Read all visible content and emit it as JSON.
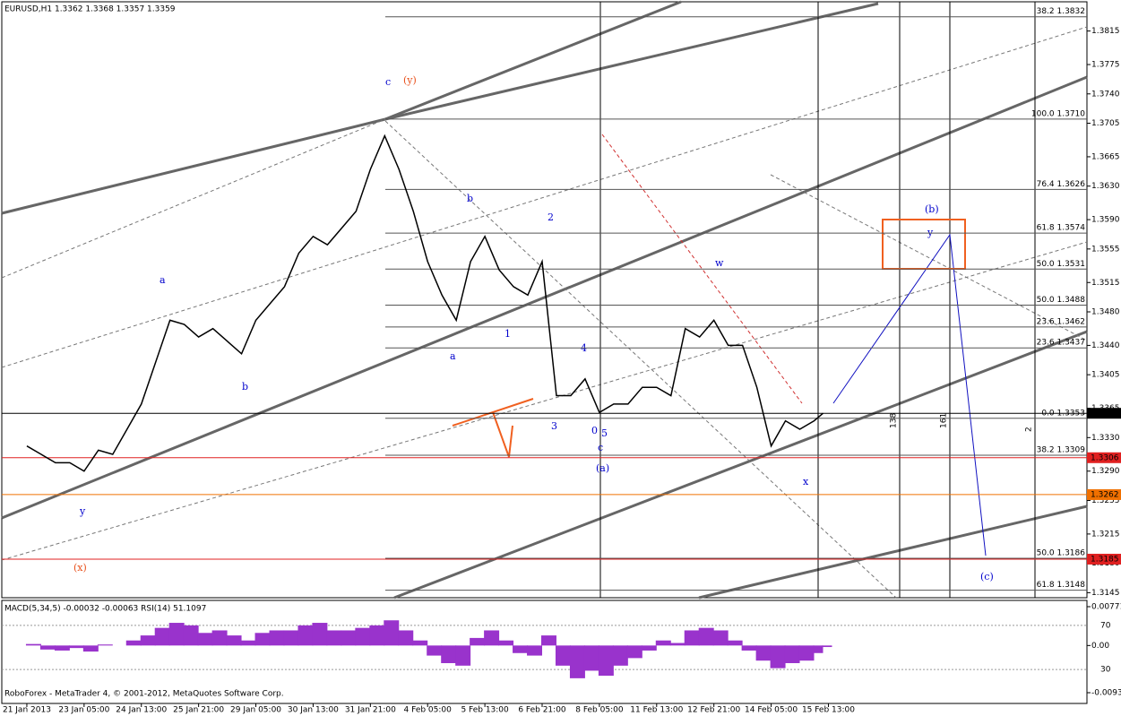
{
  "chart_data": {
    "type": "line",
    "title": "EURUSD,H1  1.3362 1.3368 1.3357 1.3359",
    "x": [
      0,
      8,
      16,
      24,
      32,
      40,
      48,
      56,
      64,
      72,
      80,
      88,
      96,
      104,
      112,
      120,
      128,
      136,
      144,
      152,
      160,
      168,
      176,
      184,
      192,
      200,
      208,
      216,
      224,
      232,
      240,
      248,
      256,
      264,
      272,
      280,
      288,
      296,
      304,
      312,
      320,
      328,
      336,
      344,
      352,
      360,
      368,
      376,
      384,
      392,
      400,
      408,
      416,
      424,
      432,
      440,
      445
    ],
    "series": [
      {
        "name": "EURUSD",
        "color": "#000000",
        "values": [
          1.332,
          1.331,
          1.33,
          1.33,
          1.329,
          1.3315,
          1.331,
          1.334,
          1.337,
          1.342,
          1.347,
          1.3465,
          1.345,
          1.346,
          1.3445,
          1.343,
          1.347,
          1.349,
          1.351,
          1.355,
          1.357,
          1.356,
          1.358,
          1.36,
          1.365,
          1.369,
          1.365,
          1.36,
          1.354,
          1.35,
          1.347,
          1.354,
          1.357,
          1.353,
          1.351,
          1.35,
          1.354,
          1.338,
          1.338,
          1.34,
          1.336,
          1.337,
          1.337,
          1.339,
          1.339,
          1.338,
          1.346,
          1.345,
          1.347,
          1.344,
          1.344,
          1.339,
          1.332,
          1.335,
          1.334,
          1.335,
          1.3359
        ]
      }
    ],
    "xlim": [
      -14,
      592.5
    ],
    "xticks": [
      {
        "value": 0,
        "label": "21 Jan 2013"
      },
      {
        "value": 32,
        "label": "23 Jan 05:00"
      },
      {
        "value": 64,
        "label": "24 Jan 13:00"
      },
      {
        "value": 96,
        "label": "25 Jan 21:00"
      },
      {
        "value": 128,
        "label": "29 Jan 05:00"
      },
      {
        "value": 160,
        "label": "30 Jan 13:00"
      },
      {
        "value": 192,
        "label": "31 Jan 21:00"
      },
      {
        "value": 224,
        "label": "4 Feb 05:00"
      },
      {
        "value": 256,
        "label": "5 Feb 13:00"
      },
      {
        "value": 288,
        "label": "6 Feb 21:00"
      },
      {
        "value": 320,
        "label": "8 Feb 05:00"
      },
      {
        "value": 352,
        "label": "11 Feb 13:00"
      },
      {
        "value": 384,
        "label": "12 Feb 21:00"
      },
      {
        "value": 416,
        "label": "14 Feb 05:00"
      },
      {
        "value": 448,
        "label": "15 Feb 13:00"
      }
    ],
    "ylim": [
      1.3139,
      1.3852
    ],
    "yticks": [
      1.3815,
      1.3775,
      {
        "value": 1.374,
        "label": "1.3740"
      },
      1.3705,
      1.3665,
      {
        "value": 1.363,
        "label": "1.3630"
      },
      {
        "value": 1.359,
        "label": "1.3590"
      },
      1.3555,
      1.3515,
      {
        "value": 1.348,
        "label": "1.3480"
      },
      {
        "value": 1.344,
        "label": "1.3440"
      },
      1.3405,
      1.3365,
      {
        "value": 1.333,
        "label": "1.3330"
      },
      {
        "value": 1.329,
        "label": "1.3290"
      },
      1.3255,
      1.3215,
      {
        "value": 1.318,
        "label": "1.3180"
      },
      1.3145
    ],
    "fib_levels": [
      {
        "label": "38.2 1.3832",
        "value": 1.3832
      },
      {
        "label": "100.0 1.3710",
        "value": 1.371
      },
      {
        "label": "76.4 1.3626",
        "value": 1.3626
      },
      {
        "label": "61.8 1.3574",
        "value": 1.3574
      },
      {
        "label": "50.0 1.3531",
        "value": 1.3531
      },
      {
        "label": "50.0 1.3488",
        "value": 1.3488
      },
      {
        "label": "23.6 1.3462",
        "value": 1.3462
      },
      {
        "label": "23.6 1.3437",
        "value": 1.3437
      },
      {
        "label": "0.0 1.3353",
        "value": 1.3353
      },
      {
        "label": "38.2 1.3309",
        "value": 1.3309
      },
      {
        "label": "50.0 1.3186",
        "value": 1.3186
      },
      {
        "label": "61.8 1.3148",
        "value": 1.3148
      }
    ],
    "price_lines": [
      {
        "value": 1.3359,
        "color": "#000000"
      },
      {
        "value": 1.3306,
        "color": "#e02020"
      },
      {
        "value": 1.3262,
        "color": "#f07000"
      },
      {
        "value": 1.3185,
        "color": "#e02020"
      }
    ],
    "annotations": [
      "c",
      "(y)",
      "a",
      "b",
      "a",
      "b",
      "2",
      "1",
      "3",
      "4",
      "5",
      "0",
      "c",
      "(a)",
      "w",
      "x",
      "y",
      "(x)",
      "(b)",
      "y",
      "(c)",
      "138",
      "161",
      "2"
    ],
    "indicator": {
      "title": "MACD(5,34,5) -0.00032 -0.00063  RSI(14) 51.1097",
      "color": "#9933cc",
      "values": [
        0.0003,
        -0.0008,
        -0.001,
        -0.0005,
        -0.0012,
        0.0002,
        0,
        0.001,
        0.002,
        0.0035,
        0.0045,
        0.004,
        0.0025,
        0.003,
        0.002,
        0.001,
        0.0025,
        0.003,
        0.003,
        0.004,
        0.0045,
        0.003,
        0.003,
        0.0035,
        0.004,
        0.005,
        0.003,
        0.001,
        -0.002,
        -0.0035,
        -0.004,
        0.0015,
        0.003,
        0.001,
        -0.0015,
        -0.002,
        0.002,
        -0.004,
        -0.0065,
        -0.005,
        -0.006,
        -0.004,
        -0.0025,
        -0.001,
        0.001,
        0.0005,
        0.003,
        0.0035,
        0.003,
        0.001,
        -0.001,
        -0.003,
        -0.0045,
        -0.0035,
        -0.003,
        -0.0015,
        -0.0003
      ],
      "ylim": [
        -0.00937,
        0.00771
      ],
      "yticks": [
        0.00771,
        {
          "value": 0,
          "label": "0.00"
        },
        -0.00937
      ],
      "rsi_ylim": [
        0,
        100
      ],
      "rsi_ticks": [
        70,
        30
      ]
    },
    "footer": "RoboForex - MetaTrader 4, © 2001-2012, MetaQuotes Software Corp."
  }
}
